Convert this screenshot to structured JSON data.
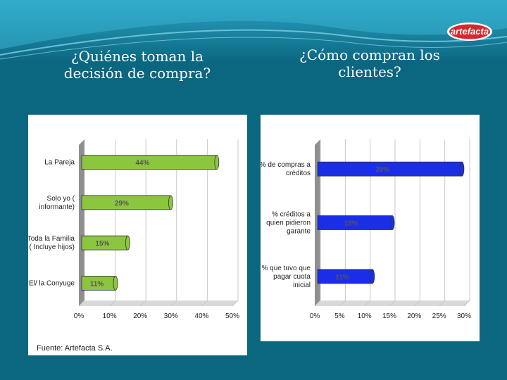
{
  "colors": {
    "background": "#0b6680",
    "left_bar": "#8cc63f",
    "right_bar": "#1a2ee8",
    "logo": "#d9252b"
  },
  "logo": {
    "text": "artefacta"
  },
  "headings": {
    "left": "¿Quiénes toman la\ndecisión de compra?",
    "right": "¿Cómo compran los\nclientes?"
  },
  "source": "Fuente: Artefacta S.A.",
  "chart_data": [
    {
      "type": "bar",
      "orientation": "horizontal",
      "categories": [
        "La Pareja",
        "Solo yo ( informante)",
        "Toda la Familia ( Incluye hijos)",
        "El/ la Conyuge"
      ],
      "values": [
        44,
        29,
        15,
        11
      ],
      "data_labels": [
        "44%",
        "29%",
        "15%",
        "11%"
      ],
      "xlim": [
        0,
        50
      ],
      "xticks": [
        "0%",
        "10%",
        "20%",
        "30%",
        "40%",
        "50%"
      ],
      "grid": true,
      "legend": "none"
    },
    {
      "type": "bar",
      "orientation": "horizontal",
      "categories": [
        "% de compras a créditos",
        "% créditos a quien pidieron garante",
        "% que tuvo que pagar cuota inicial"
      ],
      "values": [
        29,
        15,
        11
      ],
      "data_labels": [
        "29%",
        "15%",
        "11%"
      ],
      "xlim": [
        0,
        30
      ],
      "xticks": [
        "0%",
        "5%",
        "10%",
        "15%",
        "20%",
        "25%",
        "30%"
      ],
      "grid": true,
      "legend": "none"
    }
  ]
}
